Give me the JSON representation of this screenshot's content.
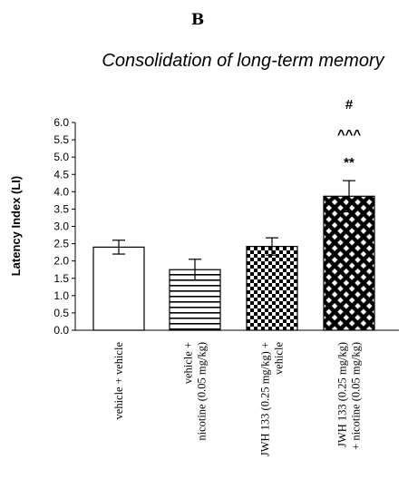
{
  "panel_label": "B",
  "chart_data": {
    "type": "bar",
    "title": "Consolidation of long-term memory",
    "xlabel": "",
    "ylabel": "Latency Index (LI)",
    "ylim": [
      0,
      6
    ],
    "yticks": [
      "0.0",
      "0.5",
      "1.0",
      "1.5",
      "2.0",
      "2.5",
      "3.0",
      "3.5",
      "4.0",
      "4.5",
      "5.0",
      "5.5",
      "6.0"
    ],
    "categories": [
      [
        "vehicle + vehicle"
      ],
      [
        "vehicle +",
        "nicotine (0.05 mg/kg)"
      ],
      [
        "JWH 133 (0.25 mg/kg) +",
        "vehicle"
      ],
      [
        "JWH 133 (0.25 mg/kg)",
        "+ nicotine (0.05 mg/kg)"
      ]
    ],
    "values": [
      2.4,
      1.75,
      2.42,
      3.87
    ],
    "errors": [
      0.2,
      0.3,
      0.25,
      0.45
    ],
    "fills": [
      "plain",
      "horizontal-stripes",
      "small-checker",
      "diagonal-checker"
    ],
    "annotations": [
      "**",
      "^^^",
      "#"
    ],
    "grid": false,
    "legend": "none"
  }
}
